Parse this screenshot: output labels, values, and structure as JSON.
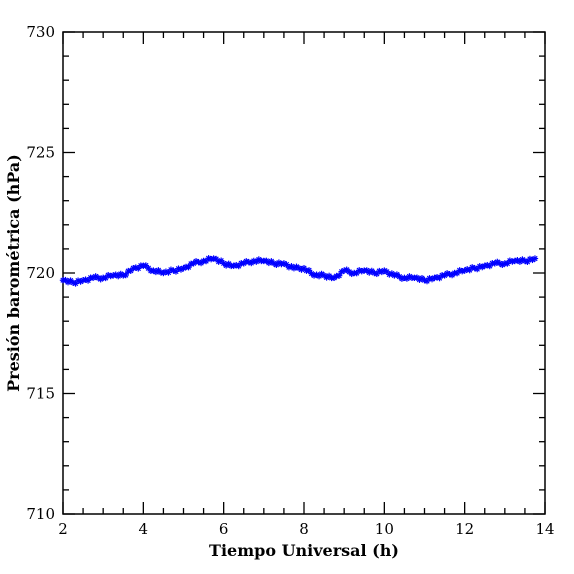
{
  "chart_data": {
    "type": "scatter",
    "xlabel": "Tiempo Universal (h)",
    "ylabel": "Presión barométrica (hPa)",
    "xlim": [
      2,
      14
    ],
    "ylim": [
      710,
      730
    ],
    "x_ticks": [
      "2",
      "4",
      "6",
      "8",
      "10",
      "12",
      "14"
    ],
    "y_ticks": [
      "710",
      "715",
      "720",
      "725",
      "730"
    ],
    "marker": "asterisk",
    "color": "#0000ff",
    "series": [
      {
        "x": [
          2.0,
          2.25,
          2.5,
          2.75,
          3.0,
          3.25,
          3.5,
          3.75,
          4.0,
          4.25,
          4.5,
          4.75,
          5.0,
          5.25,
          5.5,
          5.75,
          6.0,
          6.25,
          6.5,
          6.75,
          7.0,
          7.25,
          7.5,
          7.75,
          8.0,
          8.25,
          8.5,
          8.75,
          9.0,
          9.25,
          9.5,
          9.75,
          10.0,
          10.25,
          10.5,
          10.75,
          11.0,
          11.25,
          11.5,
          11.75,
          12.0,
          12.25,
          12.5,
          12.75,
          13.0,
          13.25,
          13.5,
          13.75
        ],
        "y": [
          719.7,
          719.6,
          719.7,
          719.8,
          719.8,
          719.9,
          719.9,
          720.2,
          720.3,
          720.1,
          720.0,
          720.1,
          720.2,
          720.4,
          720.5,
          720.6,
          720.4,
          720.3,
          720.4,
          720.5,
          720.5,
          720.4,
          720.4,
          720.2,
          720.2,
          719.9,
          719.9,
          719.8,
          720.1,
          720.0,
          720.1,
          720.0,
          720.1,
          719.9,
          719.8,
          719.8,
          719.7,
          719.8,
          719.9,
          720.0,
          720.1,
          720.2,
          720.3,
          720.4,
          720.4,
          720.5,
          720.5,
          720.6
        ]
      }
    ]
  }
}
